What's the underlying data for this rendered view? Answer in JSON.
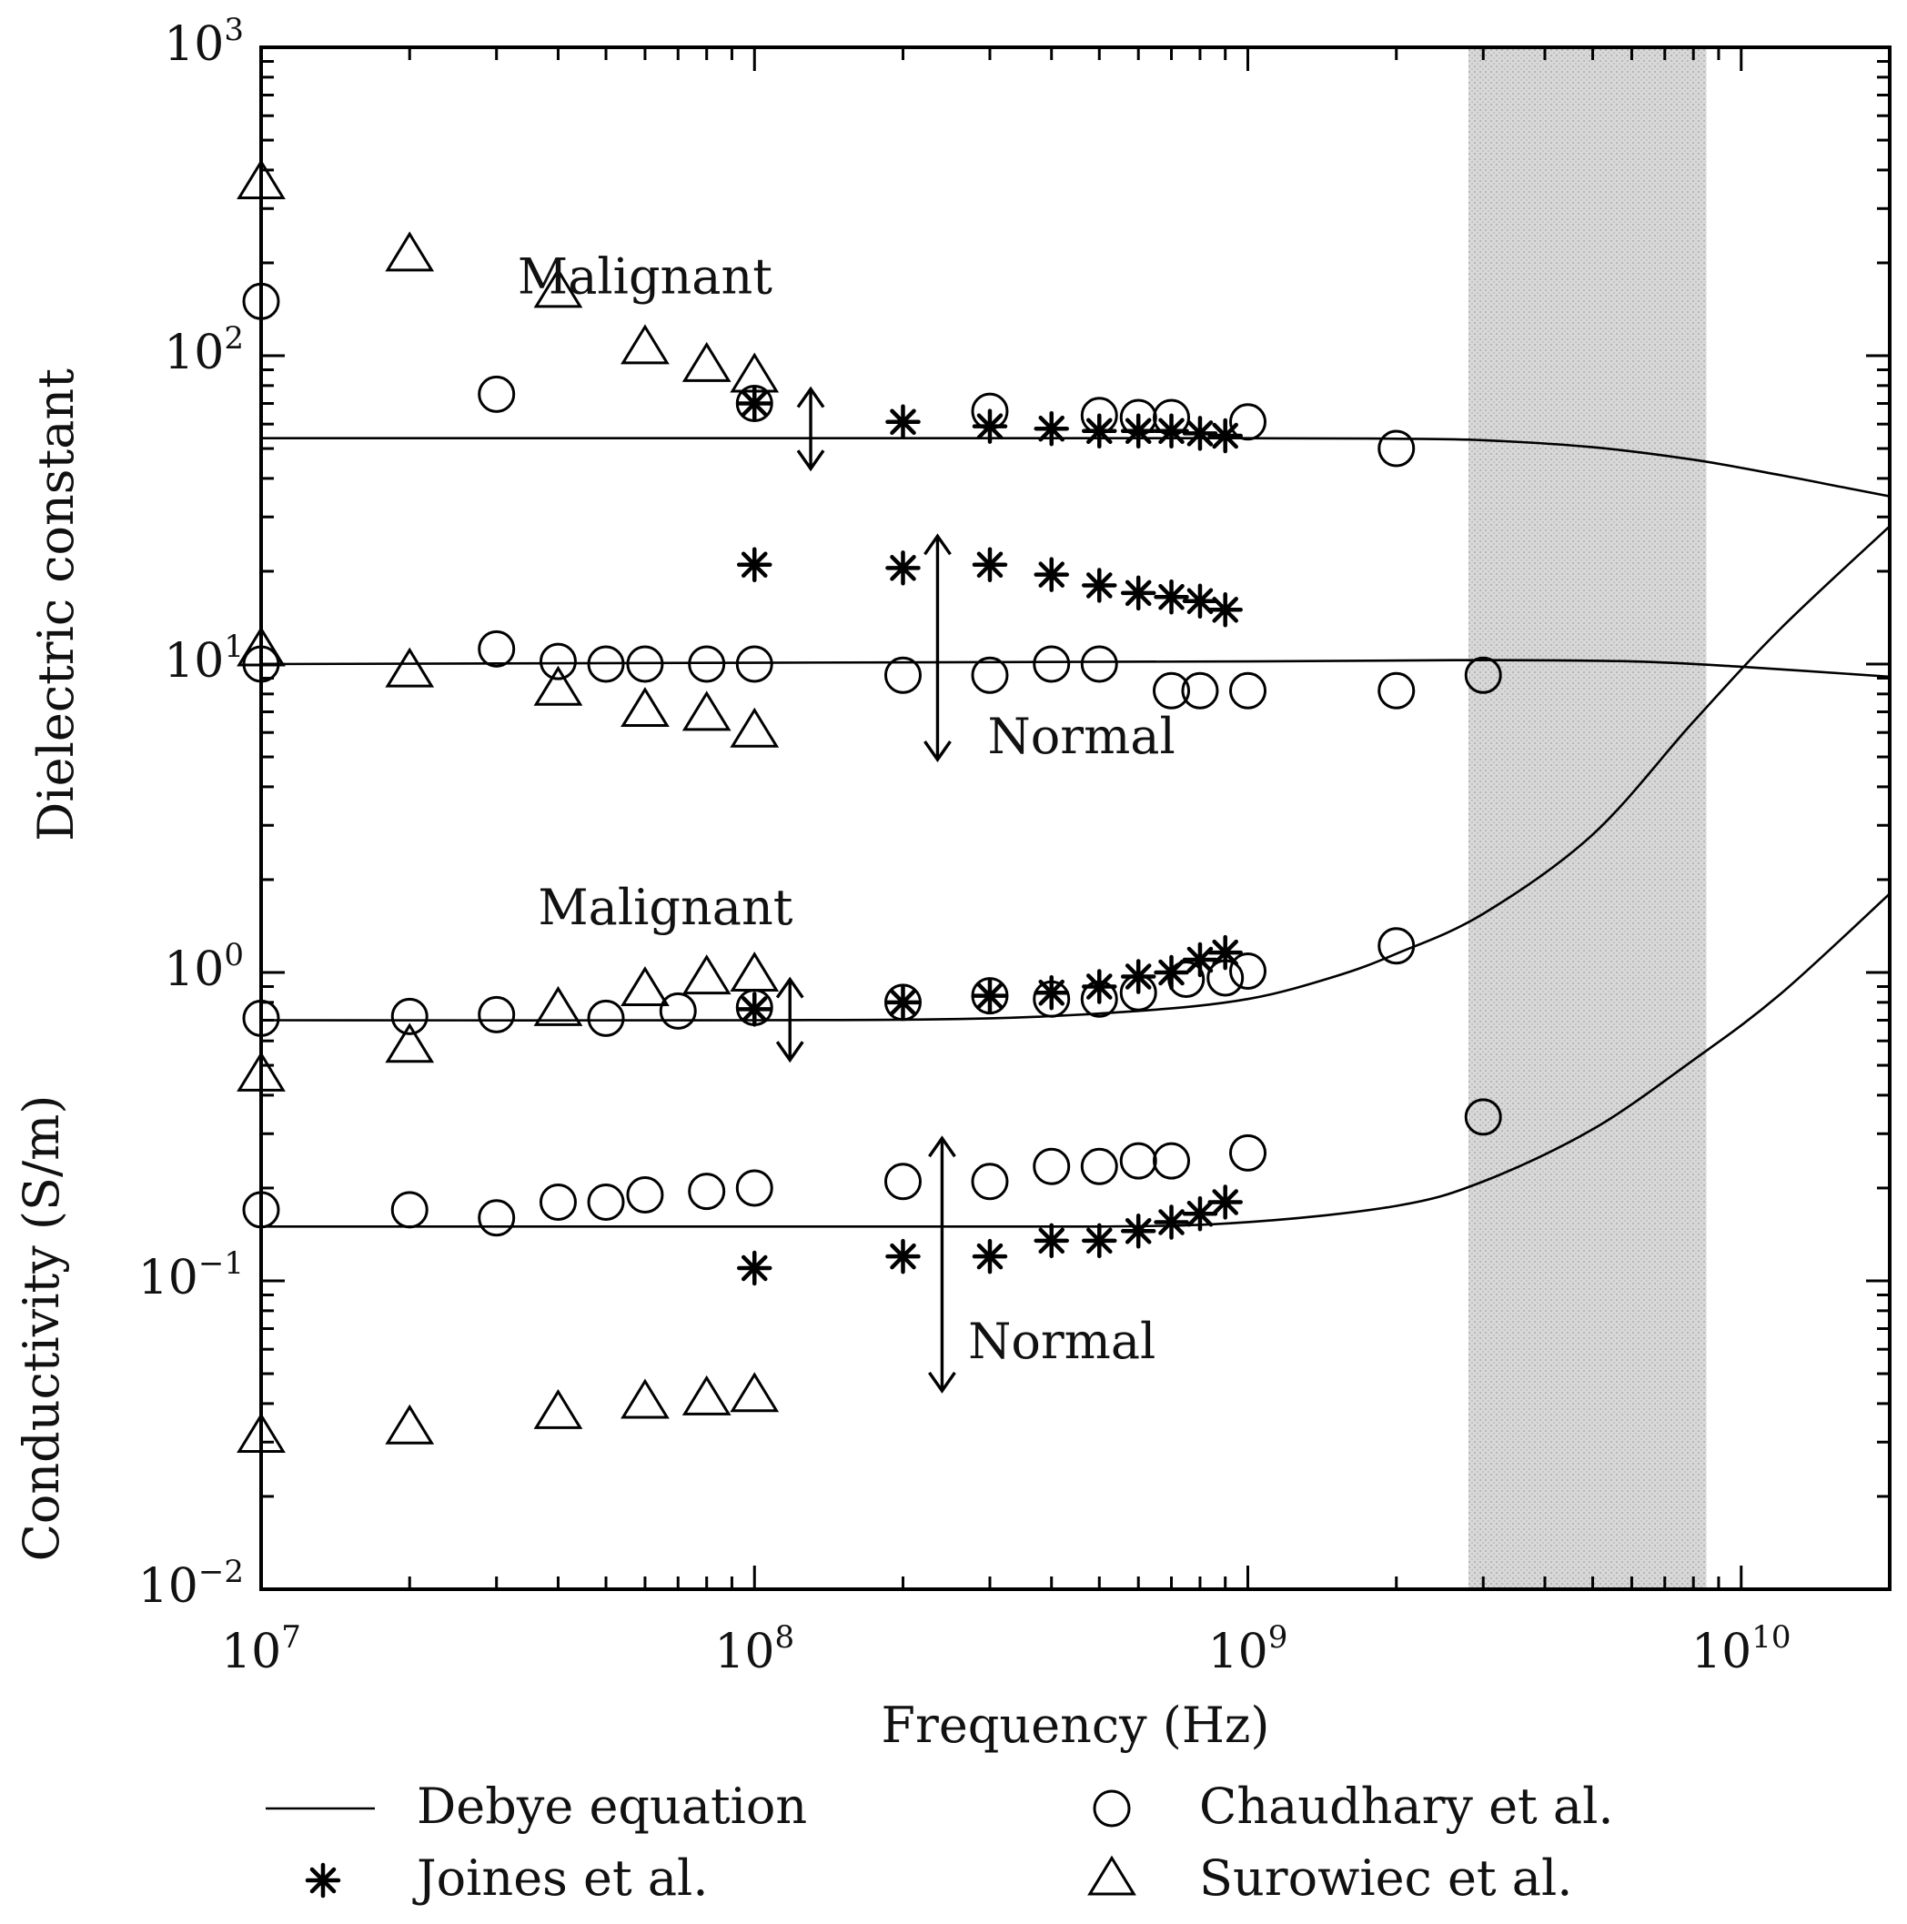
{
  "chart_data": {
    "type": "scatter",
    "title": "",
    "xlabel": "Frequency (Hz)",
    "ylabel_top": "Dielectric constant",
    "ylabel_bottom": "Conductivity (S/m)",
    "x_scale": "log",
    "y_scale": "log",
    "xlim": [
      10000000,
      20000000000
    ],
    "ylim": [
      0.01,
      1000
    ],
    "x_ticks": [
      {
        "value": 10000000,
        "base": "10",
        "exp": "7"
      },
      {
        "value": 100000000,
        "base": "10",
        "exp": "8"
      },
      {
        "value": 1000000000,
        "base": "10",
        "exp": "9"
      },
      {
        "value": 10000000000,
        "base": "10",
        "exp": "10"
      }
    ],
    "y_ticks": [
      {
        "value": 0.01,
        "base": "10",
        "exp": "−2"
      },
      {
        "value": 0.1,
        "base": "10",
        "exp": "−1"
      },
      {
        "value": 1,
        "base": "10",
        "exp": "0"
      },
      {
        "value": 10,
        "base": "10",
        "exp": "1"
      },
      {
        "value": 100,
        "base": "10",
        "exp": "2"
      },
      {
        "value": 1000,
        "base": "10",
        "exp": "3"
      }
    ],
    "shaded_band": {
      "x_from": 2800000000,
      "x_to": 8500000000
    },
    "annotations": [
      {
        "text": "Malignant",
        "x": 60000000,
        "y": 180
      },
      {
        "text": "Normal",
        "x": 460000000,
        "y": 5.8
      },
      {
        "text": "Malignant",
        "x": 66000000,
        "y": 1.62
      },
      {
        "text": "Normal",
        "x": 420000000,
        "y": 0.0635
      }
    ],
    "arrows": [
      {
        "x": 130000000,
        "y_from": 43,
        "y_to": 78,
        "style": "double"
      },
      {
        "x": 235000000,
        "y_from": 4.9,
        "y_to": 26,
        "style": "double"
      },
      {
        "x": 118000000,
        "y_from": 0.52,
        "y_to": 0.95,
        "style": "double"
      },
      {
        "x": 240000000,
        "y_from": 0.044,
        "y_to": 0.29,
        "style": "double"
      }
    ],
    "legend": {
      "placement": "bottom",
      "entries": [
        {
          "label": "Debye equation",
          "marker": "line"
        },
        {
          "label": "Chaudhary et al.",
          "marker": "circle"
        },
        {
          "label": "Joines et al.",
          "marker": "star"
        },
        {
          "label": "Surowiec et al.",
          "marker": "triangle"
        }
      ]
    },
    "series": [
      {
        "name": "Debye equation (dielectric constant, malignant)",
        "marker": "line",
        "x": [
          10000000,
          100000000,
          1000000000,
          2000000000,
          3000000000,
          5000000000,
          8000000000,
          12000000000,
          16000000000,
          20000000000
        ],
        "y": [
          54,
          54,
          54,
          53.8,
          53.2,
          50.5,
          46,
          41,
          37.5,
          35
        ]
      },
      {
        "name": "Debye equation (dielectric constant, normal)",
        "marker": "line",
        "x": [
          10000000,
          100000000,
          1000000000,
          3000000000,
          6000000000,
          10000000000,
          20000000000
        ],
        "y": [
          10,
          10.1,
          10.2,
          10.3,
          10.2,
          9.8,
          9.1
        ]
      },
      {
        "name": "Debye equation (conductivity, malignant)",
        "marker": "line",
        "x": [
          10000000,
          100000000,
          300000000,
          600000000,
          1000000000,
          1500000000,
          2000000000,
          3000000000,
          5000000000,
          8000000000,
          12000000000,
          20000000000
        ],
        "y": [
          0.7,
          0.7,
          0.71,
          0.75,
          0.82,
          0.97,
          1.15,
          1.55,
          2.8,
          6.5,
          13,
          28
        ]
      },
      {
        "name": "Debye equation (conductivity, normal)",
        "marker": "line",
        "x": [
          10000000,
          100000000,
          500000000,
          1000000000,
          2000000000,
          3000000000,
          5000000000,
          8000000000,
          12000000000,
          20000000000
        ],
        "y": [
          0.15,
          0.15,
          0.15,
          0.155,
          0.175,
          0.21,
          0.31,
          0.52,
          0.85,
          1.8
        ]
      },
      {
        "name": "Chaudhary et al.",
        "marker": "circle",
        "x": [
          10000000,
          30000000,
          100000000,
          300000000,
          500000000,
          600000000,
          700000000,
          1000000000,
          2000000000,
          10000000,
          30000000,
          40000000,
          50000000,
          60000000,
          80000000,
          100000000,
          200000000,
          300000000,
          400000000,
          500000000,
          700000000,
          800000000,
          1000000000,
          2000000000,
          3000000000,
          10000000,
          20000000,
          30000000,
          50000000,
          70000000,
          100000000,
          200000000,
          300000000,
          400000000,
          500000000,
          600000000,
          750000000,
          900000000,
          1000000000,
          2000000000,
          10000000,
          20000000,
          30000000,
          40000000,
          50000000,
          60000000,
          80000000,
          100000000,
          200000000,
          300000000,
          400000000,
          500000000,
          600000000,
          700000000,
          1000000000,
          3000000000
        ],
        "y": [
          150,
          75,
          70,
          66,
          64,
          63,
          63,
          61,
          50,
          10,
          11.2,
          10.2,
          10,
          10,
          10,
          10,
          9.2,
          9.2,
          10,
          10,
          8.2,
          8.2,
          8.2,
          8.2,
          9.2,
          0.71,
          0.72,
          0.73,
          0.71,
          0.75,
          0.77,
          0.8,
          0.84,
          0.82,
          0.82,
          0.86,
          0.95,
          0.96,
          1.01,
          1.22,
          0.17,
          0.17,
          0.16,
          0.18,
          0.18,
          0.19,
          0.195,
          0.2,
          0.21,
          0.21,
          0.235,
          0.235,
          0.245,
          0.245,
          0.26,
          0.34
        ]
      },
      {
        "name": "Joines et al.",
        "marker": "star",
        "x": [
          100000000,
          200000000,
          300000000,
          400000000,
          500000000,
          600000000,
          700000000,
          800000000,
          900000000,
          100000000,
          200000000,
          300000000,
          400000000,
          500000000,
          600000000,
          700000000,
          800000000,
          900000000,
          100000000,
          200000000,
          300000000,
          400000000,
          500000000,
          600000000,
          700000000,
          800000000,
          900000000,
          100000000,
          200000000,
          300000000,
          400000000,
          500000000,
          600000000,
          700000000,
          800000000,
          900000000
        ],
        "y": [
          70,
          61,
          59,
          58,
          57,
          57,
          57,
          56,
          55,
          21,
          20.5,
          21,
          19.5,
          18,
          17,
          16.5,
          16,
          15,
          0.76,
          0.8,
          0.84,
          0.86,
          0.9,
          0.97,
          1.0,
          1.1,
          1.16,
          0.11,
          0.12,
          0.12,
          0.135,
          0.135,
          0.145,
          0.155,
          0.165,
          0.18
        ]
      },
      {
        "name": "Surowiec et al.",
        "marker": "triangle",
        "x": [
          10000000,
          20000000,
          40000000,
          60000000,
          80000000,
          100000000,
          10000000,
          20000000,
          40000000,
          60000000,
          80000000,
          100000000,
          20000000,
          40000000,
          60000000,
          80000000,
          100000000,
          10000000,
          10000000,
          20000000,
          40000000,
          60000000,
          80000000,
          100000000
        ],
        "y": [
          360,
          210,
          160,
          105,
          92,
          85,
          11,
          9.4,
          8.2,
          7,
          6.8,
          6,
          0.57,
          0.75,
          0.87,
          0.95,
          0.97,
          0.46,
          0.031,
          0.033,
          0.037,
          0.04,
          0.041,
          0.042
        ]
      }
    ]
  }
}
